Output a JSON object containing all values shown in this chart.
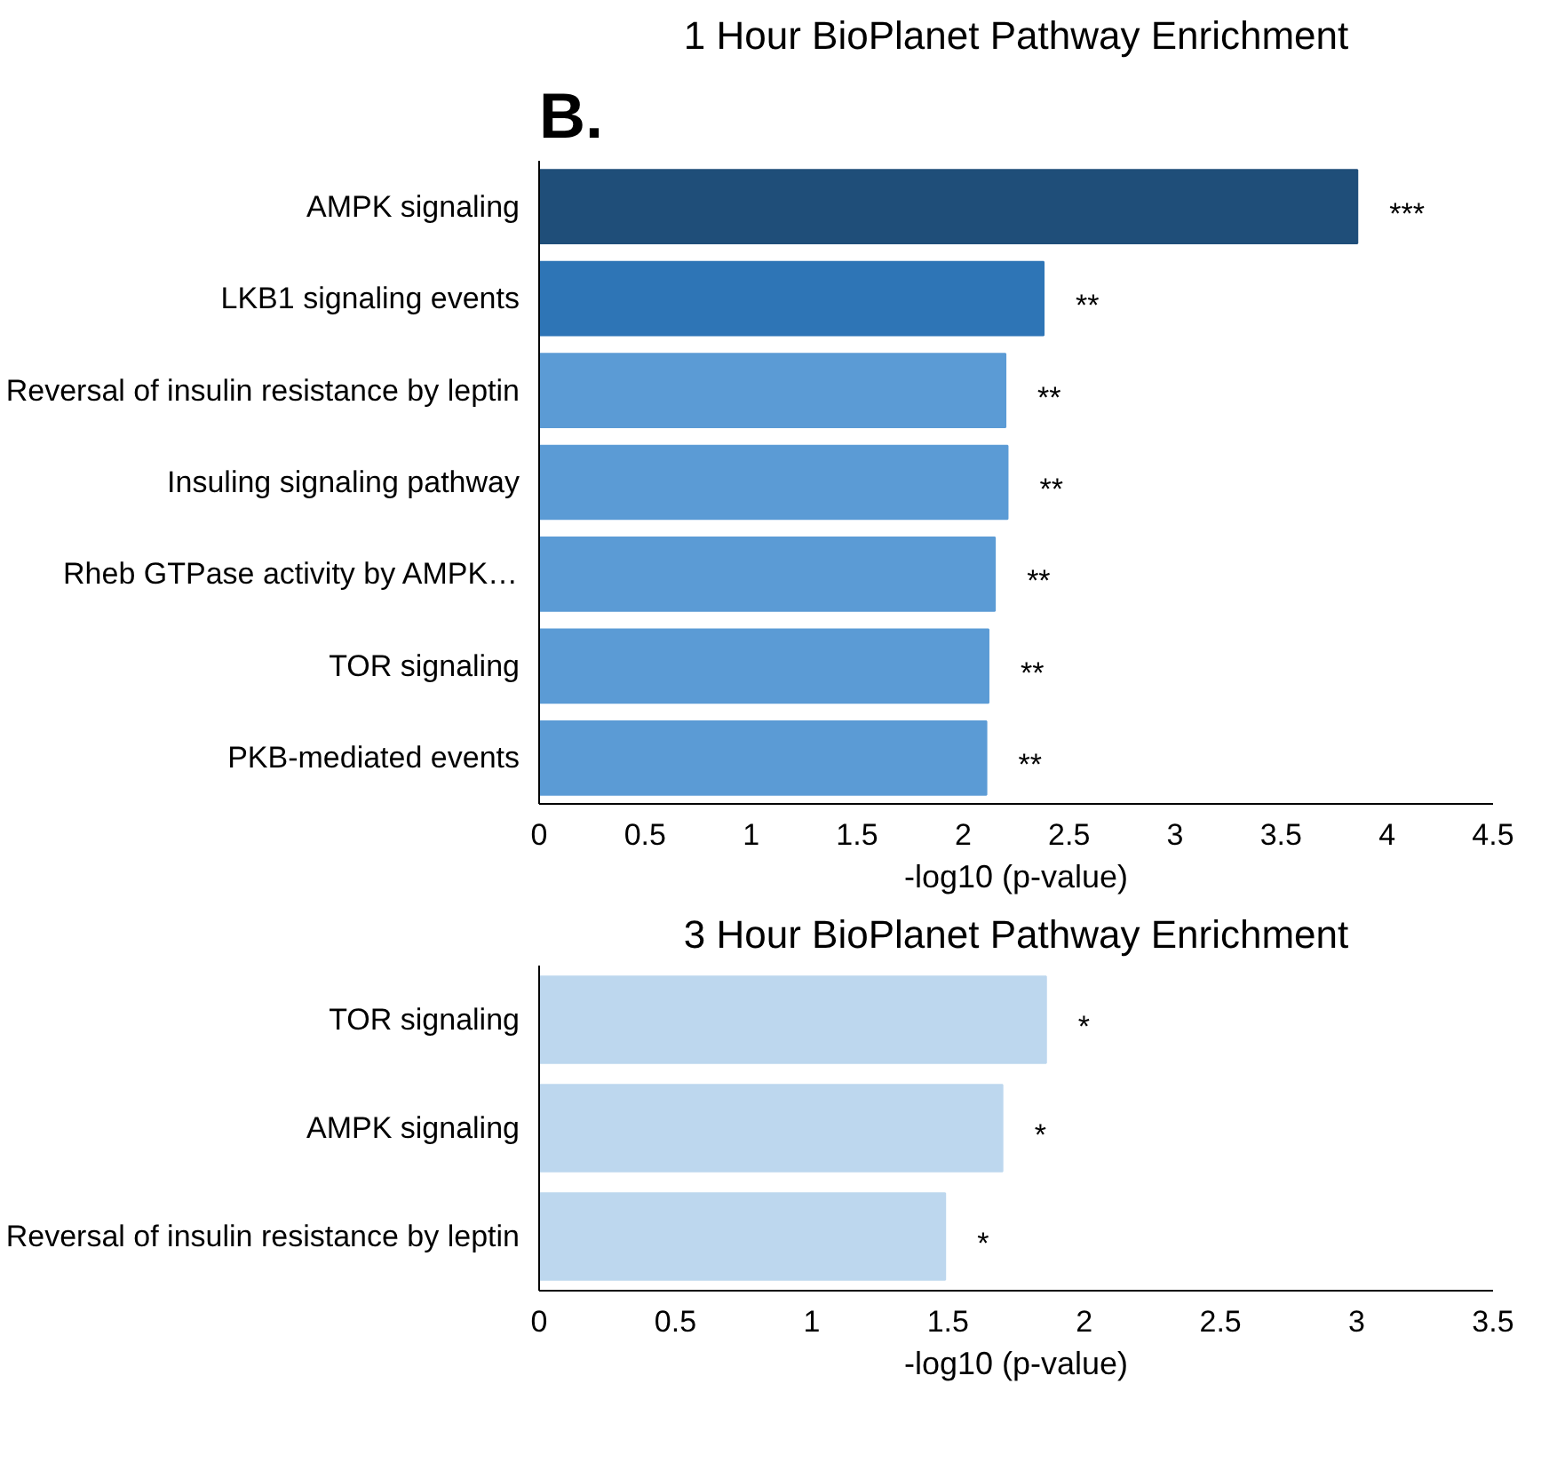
{
  "chart_data": [
    {
      "type": "bar",
      "orientation": "horizontal",
      "title": "1 Hour BioPlanet Pathway Enrichment",
      "xlabel": "-log10 (p-value)",
      "annotations": [
        "B."
      ],
      "categories": [
        "AMPK signaling",
        "LKB1 signaling events",
        "Reversal of insulin resistance by leptin",
        "Insuling signaling pathway",
        "Rheb GTPase activity by AMPK…",
        "TOR signaling",
        "PKB-mediated events"
      ],
      "values": [
        3.86,
        2.38,
        2.2,
        2.21,
        2.15,
        2.12,
        2.11
      ],
      "colors": [
        "#1f4e79",
        "#2e75b6",
        "#5b9bd5",
        "#5b9bd5",
        "#5b9bd5",
        "#5b9bd5",
        "#5b9bd5"
      ],
      "value_labels": [
        "***",
        "**",
        "**",
        "**",
        "**",
        "**",
        "**"
      ],
      "xlim": [
        0,
        4.5
      ],
      "xticks": [
        0,
        {
          "value": 0.5,
          "label": "0.5"
        },
        1,
        {
          "value": 1.5,
          "label": "1.5"
        },
        2,
        {
          "value": 2.5,
          "label": "2.5"
        },
        3,
        {
          "value": 3.5,
          "label": "3.5"
        },
        4,
        {
          "value": 4.5,
          "label": "4.5"
        }
      ],
      "grid": false
    },
    {
      "type": "bar",
      "orientation": "horizontal",
      "title": "3 Hour BioPlanet Pathway Enrichment",
      "xlabel": "-log10 (p-value)",
      "categories": [
        "TOR signaling",
        "AMPK signaling",
        "Reversal of insulin resistance by leptin"
      ],
      "values": [
        1.86,
        1.7,
        1.49
      ],
      "colors": [
        "#bdd7ee",
        "#bdd7ee",
        "#bdd7ee"
      ],
      "value_labels": [
        "*",
        "*",
        "*"
      ],
      "xlim": [
        0,
        3.5
      ],
      "xticks": [
        0,
        {
          "value": 0.5,
          "label": "0.5"
        },
        1,
        {
          "value": 1.5,
          "label": "1.5"
        },
        2,
        {
          "value": 2.5,
          "label": "2.5"
        },
        3,
        {
          "value": 3.5,
          "label": "3.5"
        }
      ],
      "grid": false
    }
  ]
}
